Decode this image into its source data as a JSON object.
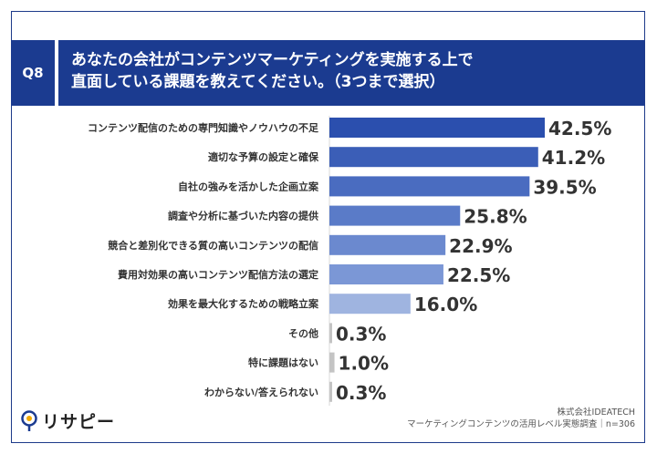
{
  "header": {
    "q_label": "Q8",
    "title_line1": "あなたの会社がコンテンツマーケティングを実施する上で",
    "title_line2": "直面している課題を教えてください。（3つまで選択）"
  },
  "footer": {
    "company": "株式会社IDEATECH",
    "survey": "マーケティングコンテンツの活用レベル実態調査｜n=306",
    "logo_text": "リサピー"
  },
  "colors": {
    "header_bg": "#1b3b90",
    "bars": [
      "#2b4fae",
      "#3b5eb7",
      "#4a6cc0",
      "#5a7bc8",
      "#6b89cf",
      "#7b97d6",
      "#9fb4e0",
      "#c4c4c4",
      "#c4c4c4",
      "#c4c4c4"
    ],
    "grid": "#d9d9d9"
  },
  "chart_data": {
    "type": "bar",
    "orientation": "horizontal",
    "categories": [
      "コンテンツ配信のための専門知識やノウハウの不足",
      "適切な予算の設定と確保",
      "自社の強みを活かした企画立案",
      "調査や分析に基づいた内容の提供",
      "競合と差別化できる質の高いコンテンツの配信",
      "費用対効果の高いコンテンツ配信方法の選定",
      "効果を最大化するための戦略立案",
      "その他",
      "特に課題はない",
      "わからない/答えられない"
    ],
    "values": [
      42.5,
      41.2,
      39.5,
      25.8,
      22.9,
      22.5,
      16.0,
      0.3,
      1.0,
      0.3
    ],
    "value_labels": [
      "42.5%",
      "41.2%",
      "39.5%",
      "25.8%",
      "22.9%",
      "22.5%",
      "16.0%",
      "0.3%",
      "1.0%",
      "0.3%"
    ],
    "xlim": [
      0,
      50
    ],
    "grid": false,
    "legend": "none"
  }
}
